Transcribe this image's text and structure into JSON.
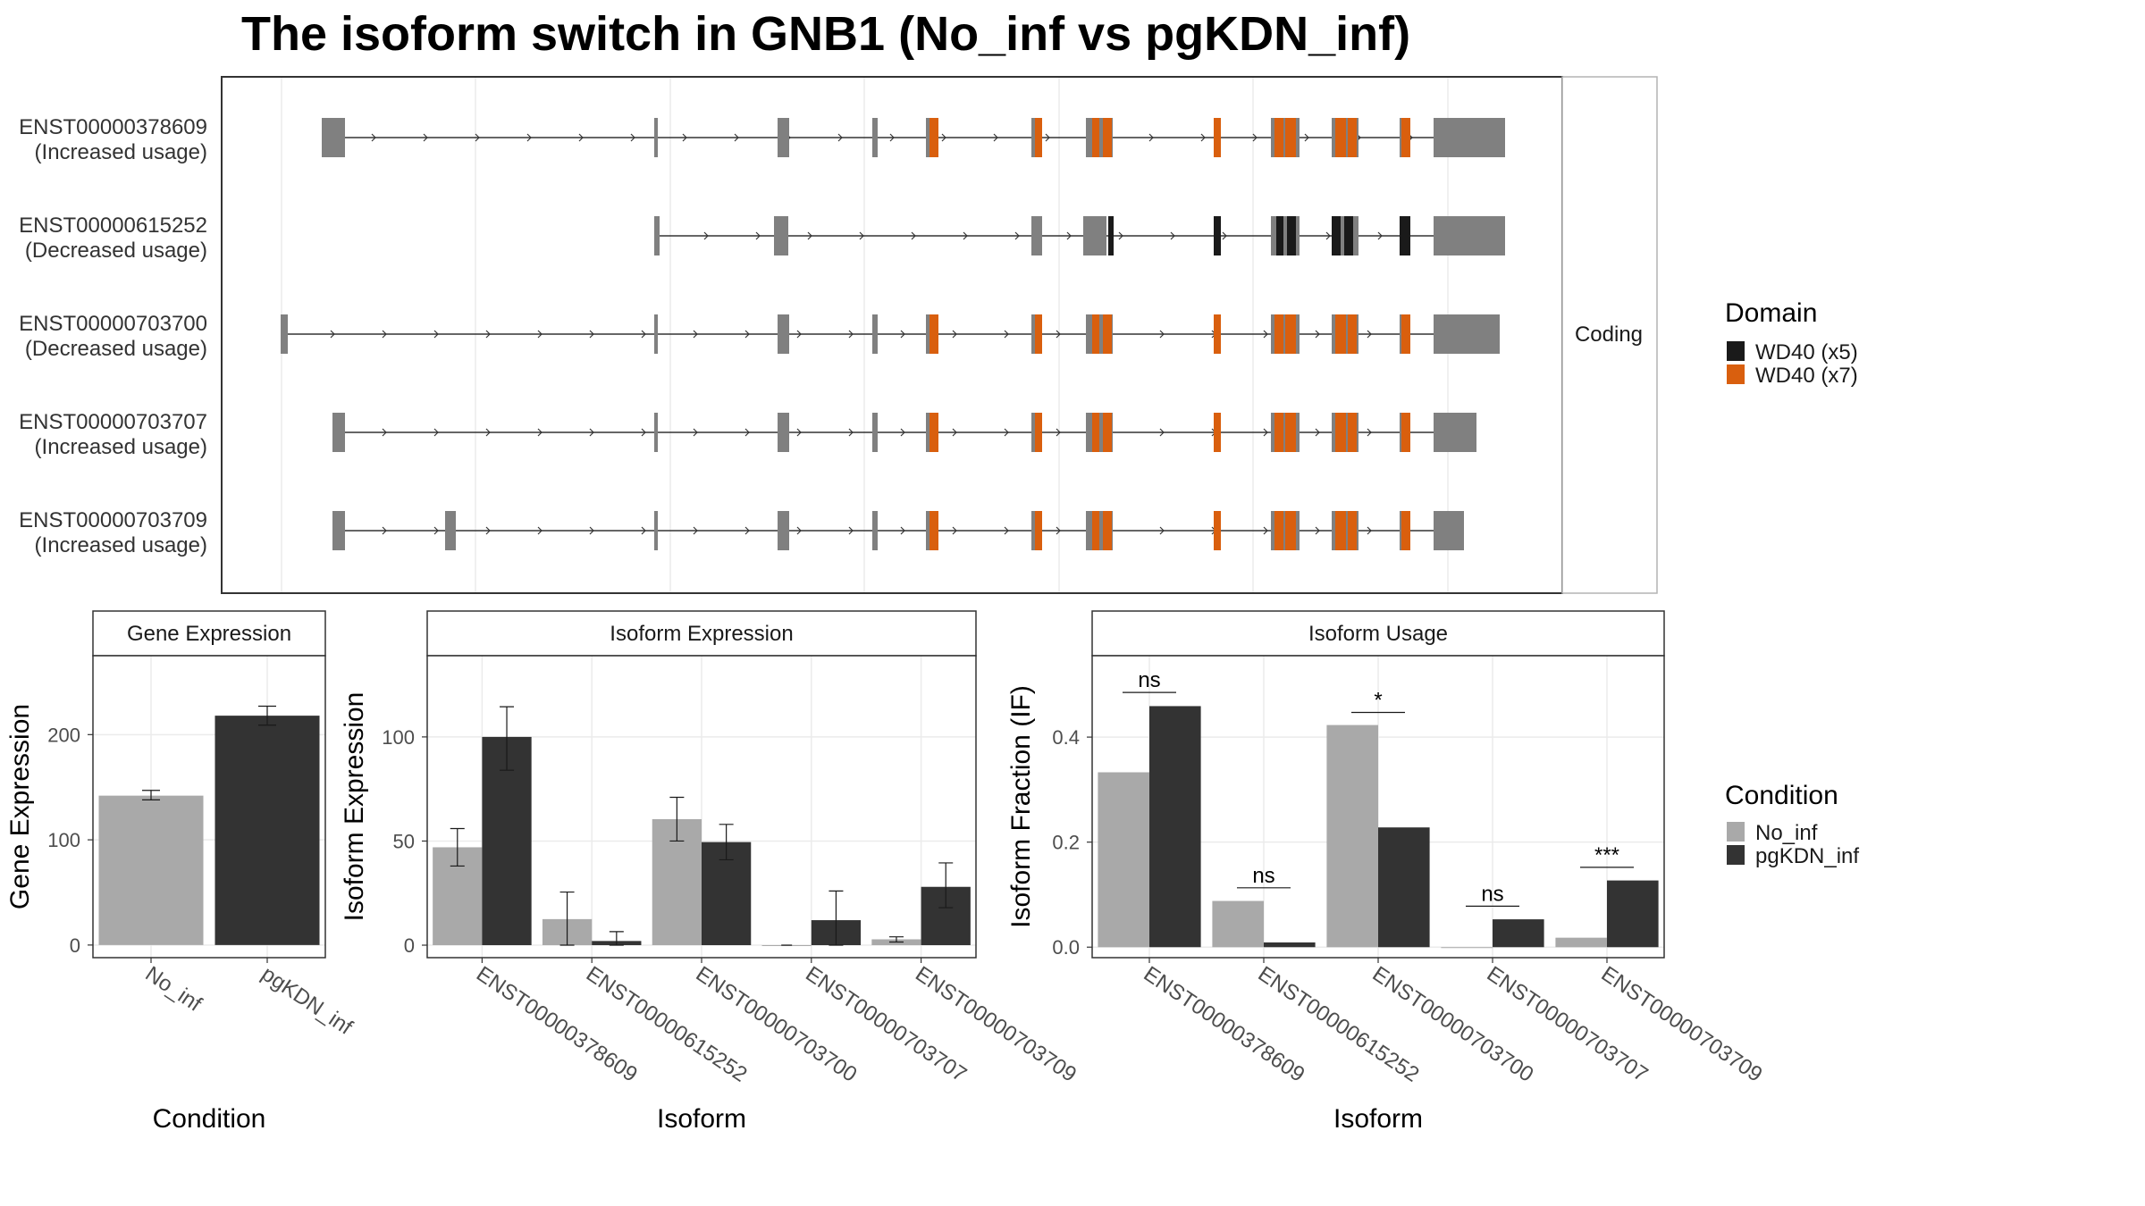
{
  "title": "The isoform switch in GNB1 (No_inf vs pgKDN_inf)",
  "colors": {
    "exon": "#808080",
    "wd40_x5": "#1a1a1a",
    "wd40_x7": "#d95f0e",
    "no_inf": "#a9a9a9",
    "pgkdn_inf": "#333333",
    "grid": "#ebebeb",
    "panel_border": "#333333",
    "strip_fill": "#ffffff"
  },
  "structure": {
    "strip_label": "Coding",
    "isoforms": [
      {
        "id": "ENST00000378609",
        "usage": "(Increased usage)"
      },
      {
        "id": "ENST00000615252",
        "usage": "(Decreased usage)"
      },
      {
        "id": "ENST00000703700",
        "usage": "(Decreased usage)"
      },
      {
        "id": "ENST00000703707",
        "usage": "(Increased usage)"
      },
      {
        "id": "ENST00000703709",
        "usage": "(Increased usage)"
      }
    ],
    "domain_legend": {
      "title": "Domain",
      "items": [
        {
          "label": "WD40 (x5)",
          "color_key": "wd40_x5"
        },
        {
          "label": "WD40 (x7)",
          "color_key": "wd40_x7"
        }
      ]
    }
  },
  "condition_legend": {
    "title": "Condition",
    "items": [
      {
        "label": "No_inf",
        "color_key": "no_inf"
      },
      {
        "label": "pgKDN_inf",
        "color_key": "pgkdn_inf"
      }
    ]
  },
  "chart_data": [
    {
      "type": "bar",
      "panel": "Gene Expression",
      "xlabel": "Condition",
      "ylabel": "Gene Expression",
      "categories": [
        "No_inf",
        "pgKDN_inf"
      ],
      "values": [
        142,
        218
      ],
      "errors": [
        [
          138,
          147
        ],
        [
          209,
          227
        ]
      ],
      "ylim": [
        -12,
        275
      ],
      "yticks": [
        0,
        100,
        200
      ]
    },
    {
      "type": "bar",
      "panel": "Isoform Expression",
      "xlabel": "Isoform",
      "ylabel": "Isoform Expression",
      "categories": [
        "ENST00000378609",
        "ENST00000615252",
        "ENST00000703700",
        "ENST00000703707",
        "ENST00000703709"
      ],
      "series": [
        {
          "name": "No_inf",
          "values": [
            47,
            12.5,
            60.5,
            0,
            2.8
          ],
          "errors": [
            [
              38,
              56
            ],
            [
              0,
              25.5
            ],
            [
              50,
              71
            ],
            [
              0,
              0
            ],
            [
              1.5,
              4
            ]
          ]
        },
        {
          "name": "pgKDN_inf",
          "values": [
            100,
            2,
            49.5,
            12,
            28
          ],
          "errors": [
            [
              84,
              114.5
            ],
            [
              0,
              6.5
            ],
            [
              41,
              58
            ],
            [
              0,
              26
            ],
            [
              18,
              39.5
            ]
          ]
        }
      ],
      "ylim": [
        -6,
        139
      ],
      "yticks": [
        0,
        50,
        100
      ]
    },
    {
      "type": "bar",
      "panel": "Isoform Usage",
      "xlabel": "Isoform",
      "ylabel": "Isoform Fraction (IF)",
      "categories": [
        "ENST00000378609",
        "ENST00000615252",
        "ENST00000703700",
        "ENST00000703707",
        "ENST00000703709"
      ],
      "series": [
        {
          "name": "No_inf",
          "values": [
            0.333,
            0.088,
            0.423,
            0,
            0.018
          ]
        },
        {
          "name": "pgKDN_inf",
          "values": [
            0.459,
            0.009,
            0.228,
            0.053,
            0.127
          ]
        }
      ],
      "significance": [
        "ns",
        "ns",
        "*",
        "ns",
        "***"
      ],
      "sig_line_y": [
        0.485,
        0.113,
        0.447,
        0.078,
        0.152
      ],
      "ylim": [
        -0.02,
        0.555
      ],
      "yticks": [
        0.0,
        0.2,
        0.4
      ],
      "ytick_labels": [
        "0.0",
        "0.2",
        "0.4"
      ]
    }
  ]
}
